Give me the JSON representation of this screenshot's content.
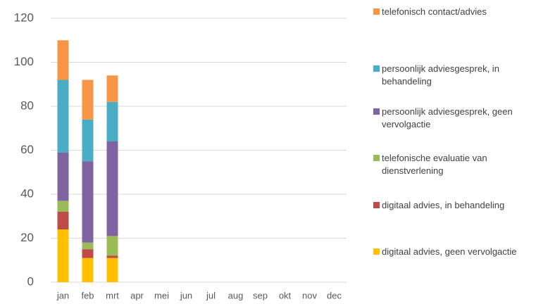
{
  "chart_data": {
    "type": "stacked-bar",
    "categories": [
      "jan",
      "feb",
      "mrt",
      "apr",
      "mei",
      "jun",
      "jul",
      "aug",
      "sep",
      "okt",
      "nov",
      "dec"
    ],
    "series": [
      {
        "name": "digitaal advies, geen vervolgactie",
        "color": "#ffc000",
        "values": [
          24,
          11,
          11,
          null,
          null,
          null,
          null,
          null,
          null,
          null,
          null,
          null
        ]
      },
      {
        "name": "digitaal advies, in behandeling",
        "color": "#be4b48",
        "values": [
          8,
          4,
          1,
          null,
          null,
          null,
          null,
          null,
          null,
          null,
          null,
          null
        ]
      },
      {
        "name": "telefonische evaluatie van dienstverlening",
        "color": "#9bbb59",
        "values": [
          5,
          3,
          9,
          null,
          null,
          null,
          null,
          null,
          null,
          null,
          null,
          null
        ]
      },
      {
        "name": "persoonlijk adviesgesprek, geen vervolgactie",
        "color": "#8064a2",
        "values": [
          22,
          37,
          43,
          null,
          null,
          null,
          null,
          null,
          null,
          null,
          null,
          null
        ]
      },
      {
        "name": "persoonlijk adviesgesprek, in behandeling",
        "color": "#4bacc6",
        "values": [
          33,
          19,
          18,
          null,
          null,
          null,
          null,
          null,
          null,
          null,
          null,
          null
        ]
      },
      {
        "name": "telefonisch contact/advies",
        "color": "#f79646",
        "values": [
          18,
          18,
          12,
          null,
          null,
          null,
          null,
          null,
          null,
          null,
          null,
          null
        ]
      }
    ],
    "ylim": [
      0,
      120
    ],
    "yticks": [
      0,
      20,
      40,
      60,
      80,
      100,
      120
    ],
    "grid": true,
    "legend": "right"
  }
}
